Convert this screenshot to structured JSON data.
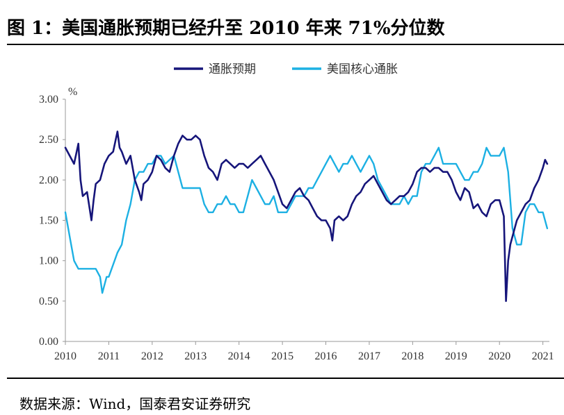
{
  "header": {
    "title": "图 1：美国通胀预期已经升至 2010 年来 71%分位数"
  },
  "footer": {
    "source": "数据来源：Wind，国泰君安证券研究"
  },
  "colors": {
    "series_1": "#16157a",
    "series_2": "#1cb0e3",
    "axis": "#999999"
  },
  "chart_data": {
    "type": "line",
    "title": "",
    "xlabel": "",
    "ylabel": "%",
    "xlim": [
      2010,
      2021.15
    ],
    "ylim": [
      0,
      3
    ],
    "y_ticks": [
      "0.00",
      "0.50",
      "1.00",
      "1.50",
      "2.00",
      "2.50",
      "3.00"
    ],
    "x_ticks": [
      "2010",
      "2011",
      "2012",
      "2013",
      "2014",
      "2015",
      "2016",
      "2017",
      "2018",
      "2019",
      "2020",
      "2021"
    ],
    "legend_position": "top-center",
    "grid": false,
    "series": [
      {
        "name": "通胀预期",
        "color": "#16157a",
        "x": [
          2010.0,
          2010.1,
          2010.2,
          2010.3,
          2010.35,
          2010.4,
          2010.5,
          2010.6,
          2010.65,
          2010.7,
          2010.8,
          2010.9,
          2011.0,
          2011.1,
          2011.2,
          2011.25,
          2011.3,
          2011.4,
          2011.5,
          2011.6,
          2011.7,
          2011.75,
          2011.8,
          2011.9,
          2012.0,
          2012.1,
          2012.2,
          2012.3,
          2012.4,
          2012.5,
          2012.6,
          2012.7,
          2012.8,
          2012.9,
          2013.0,
          2013.1,
          2013.2,
          2013.3,
          2013.4,
          2013.5,
          2013.6,
          2013.7,
          2013.8,
          2013.9,
          2014.0,
          2014.1,
          2014.2,
          2014.3,
          2014.4,
          2014.5,
          2014.6,
          2014.7,
          2014.8,
          2014.9,
          2015.0,
          2015.1,
          2015.2,
          2015.3,
          2015.4,
          2015.5,
          2015.6,
          2015.7,
          2015.8,
          2015.9,
          2016.0,
          2016.1,
          2016.15,
          2016.2,
          2016.3,
          2016.4,
          2016.5,
          2016.6,
          2016.7,
          2016.8,
          2016.9,
          2017.0,
          2017.1,
          2017.2,
          2017.3,
          2017.4,
          2017.5,
          2017.6,
          2017.7,
          2017.8,
          2017.9,
          2018.0,
          2018.1,
          2018.2,
          2018.3,
          2018.4,
          2018.5,
          2018.6,
          2018.7,
          2018.8,
          2018.9,
          2019.0,
          2019.1,
          2019.2,
          2019.3,
          2019.4,
          2019.5,
          2019.6,
          2019.7,
          2019.8,
          2019.9,
          2020.0,
          2020.1,
          2020.15,
          2020.2,
          2020.25,
          2020.3,
          2020.4,
          2020.5,
          2020.6,
          2020.7,
          2020.8,
          2020.9,
          2021.0,
          2021.05,
          2021.1
        ],
        "values": [
          2.4,
          2.3,
          2.2,
          2.45,
          2.0,
          1.8,
          1.85,
          1.5,
          1.75,
          1.95,
          2.0,
          2.2,
          2.3,
          2.35,
          2.6,
          2.4,
          2.35,
          2.2,
          2.3,
          2.0,
          1.85,
          1.75,
          1.95,
          2.0,
          2.1,
          2.3,
          2.25,
          2.15,
          2.1,
          2.3,
          2.45,
          2.55,
          2.5,
          2.5,
          2.55,
          2.5,
          2.3,
          2.15,
          2.1,
          2.0,
          2.2,
          2.25,
          2.2,
          2.15,
          2.2,
          2.2,
          2.15,
          2.2,
          2.25,
          2.3,
          2.2,
          2.1,
          2.0,
          1.85,
          1.7,
          1.65,
          1.75,
          1.85,
          1.9,
          1.8,
          1.75,
          1.65,
          1.55,
          1.5,
          1.5,
          1.4,
          1.25,
          1.5,
          1.55,
          1.5,
          1.55,
          1.7,
          1.8,
          1.85,
          1.95,
          2.0,
          2.05,
          1.95,
          1.85,
          1.75,
          1.7,
          1.75,
          1.8,
          1.8,
          1.85,
          1.95,
          2.1,
          2.15,
          2.15,
          2.1,
          2.15,
          2.15,
          2.1,
          2.1,
          2.0,
          1.85,
          1.75,
          1.9,
          1.85,
          1.65,
          1.7,
          1.6,
          1.55,
          1.7,
          1.75,
          1.75,
          1.55,
          0.5,
          1.0,
          1.2,
          1.3,
          1.5,
          1.6,
          1.7,
          1.75,
          1.9,
          2.0,
          2.15,
          2.25,
          2.2
        ]
      },
      {
        "name": "美国核心通胀",
        "color": "#1cb0e3",
        "x": [
          2010.0,
          2010.1,
          2010.2,
          2010.3,
          2010.5,
          2010.6,
          2010.7,
          2010.8,
          2010.85,
          2010.95,
          2011.0,
          2011.2,
          2011.3,
          2011.4,
          2011.5,
          2011.6,
          2011.7,
          2011.8,
          2011.9,
          2012.0,
          2012.1,
          2012.2,
          2012.3,
          2012.5,
          2012.6,
          2012.7,
          2012.8,
          2012.9,
          2013.0,
          2013.1,
          2013.2,
          2013.3,
          2013.4,
          2013.5,
          2013.6,
          2013.7,
          2013.8,
          2013.9,
          2014.0,
          2014.1,
          2014.2,
          2014.3,
          2014.4,
          2014.5,
          2014.6,
          2014.7,
          2014.8,
          2014.9,
          2015.0,
          2015.1,
          2015.2,
          2015.3,
          2015.4,
          2015.5,
          2015.6,
          2015.7,
          2015.8,
          2015.9,
          2016.0,
          2016.1,
          2016.2,
          2016.3,
          2016.4,
          2016.5,
          2016.6,
          2016.7,
          2016.8,
          2016.9,
          2017.0,
          2017.1,
          2017.2,
          2017.3,
          2017.4,
          2017.5,
          2017.6,
          2017.7,
          2017.8,
          2017.9,
          2018.0,
          2018.1,
          2018.2,
          2018.3,
          2018.4,
          2018.5,
          2018.6,
          2018.7,
          2018.8,
          2018.9,
          2019.0,
          2019.1,
          2019.2,
          2019.3,
          2019.4,
          2019.5,
          2019.6,
          2019.7,
          2019.8,
          2019.9,
          2020.0,
          2020.1,
          2020.2,
          2020.3,
          2020.4,
          2020.5,
          2020.6,
          2020.7,
          2020.8,
          2020.9,
          2021.0,
          2021.1
        ],
        "values": [
          1.6,
          1.3,
          1.0,
          0.9,
          0.9,
          0.9,
          0.9,
          0.8,
          0.6,
          0.8,
          0.8,
          1.1,
          1.2,
          1.5,
          1.7,
          2.0,
          2.1,
          2.1,
          2.2,
          2.2,
          2.3,
          2.3,
          2.2,
          2.3,
          2.1,
          1.9,
          1.9,
          1.9,
          1.9,
          1.9,
          1.7,
          1.6,
          1.6,
          1.7,
          1.7,
          1.8,
          1.7,
          1.7,
          1.6,
          1.6,
          1.8,
          2.0,
          1.9,
          1.8,
          1.7,
          1.7,
          1.8,
          1.6,
          1.6,
          1.6,
          1.7,
          1.8,
          1.8,
          1.8,
          1.9,
          1.9,
          2.0,
          2.1,
          2.2,
          2.3,
          2.2,
          2.1,
          2.2,
          2.2,
          2.3,
          2.2,
          2.1,
          2.2,
          2.3,
          2.2,
          2.0,
          1.9,
          1.8,
          1.7,
          1.7,
          1.7,
          1.8,
          1.7,
          1.8,
          1.8,
          2.1,
          2.2,
          2.2,
          2.3,
          2.4,
          2.2,
          2.2,
          2.2,
          2.2,
          2.1,
          2.0,
          2.0,
          2.1,
          2.1,
          2.2,
          2.4,
          2.3,
          2.3,
          2.3,
          2.4,
          2.1,
          1.4,
          1.2,
          1.2,
          1.6,
          1.7,
          1.7,
          1.6,
          1.6,
          1.4
        ]
      }
    ]
  }
}
